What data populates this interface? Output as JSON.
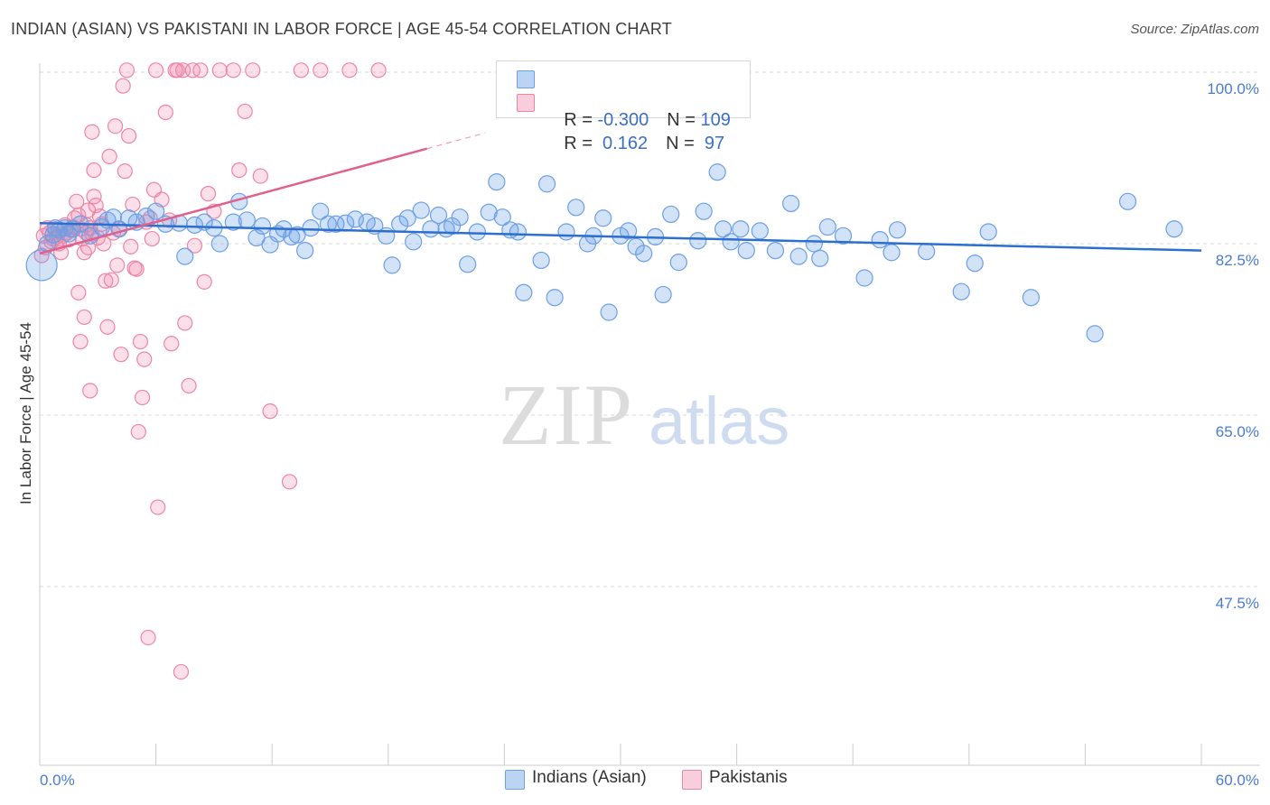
{
  "header": {
    "title": "INDIAN (ASIAN) VS PAKISTANI IN LABOR FORCE | AGE 45-54 CORRELATION CHART",
    "source": "Source: ZipAtlas.com"
  },
  "watermark": {
    "zip": "ZIP",
    "atlas": "atlas"
  },
  "colors": {
    "blue": "#6b9fe6",
    "blue_fill": "rgba(107,159,230,0.30)",
    "blue_line": "#2d6fcf",
    "pink": "#ee84a8",
    "pink_fill": "rgba(238,132,168,0.25)",
    "pink_line": "#e0608e",
    "tick_text": "#4a7cc9"
  },
  "legend": {
    "rows": [
      {
        "r_label": "R = ",
        "r_value": "-0.300",
        "n_label": "N = ",
        "n_value": "109"
      },
      {
        "r_label": "R = ",
        "r_value": " 0.162",
        "n_label": "N = ",
        "n_value": " 97"
      }
    ]
  },
  "bottom_legend": {
    "blue": "Indians (Asian)",
    "pink": "Pakistanis"
  },
  "chart_data": {
    "type": "scatter",
    "title": "INDIAN (ASIAN) VS PAKISTANI IN LABOR FORCE | AGE 45-54 CORRELATION CHART",
    "xlabel": "",
    "ylabel": "In Labor Force | Age 45-54",
    "xlim": [
      0,
      60
    ],
    "ylim": [
      30,
      101
    ],
    "x_tick_labels": [
      "0.0%",
      "60.0%"
    ],
    "y_ticks": [
      100,
      82.5,
      65,
      47.5
    ],
    "y_tick_labels": [
      "100.0%",
      "82.5%",
      "65.0%",
      "47.5%"
    ],
    "grid": "horizontal dashed",
    "legend_position": "top-center",
    "series": [
      {
        "name": "Indians (Asian)",
        "color": "#6b9fe6",
        "R": -0.3,
        "N": 109,
        "trend": {
          "x": [
            0,
            60
          ],
          "y": [
            84.6,
            81.8
          ]
        },
        "points": [
          [
            0.1,
            80.3
          ],
          [
            0.4,
            82.5
          ],
          [
            0.7,
            83.4
          ],
          [
            0.8,
            84.1
          ],
          [
            1.0,
            83.9
          ],
          [
            1.3,
            84.1
          ],
          [
            1.5,
            83.5
          ],
          [
            1.7,
            84.0
          ],
          [
            2.1,
            84.5
          ],
          [
            2.6,
            83.3
          ],
          [
            3.2,
            84.2
          ],
          [
            3.5,
            84.9
          ],
          [
            3.8,
            85.2
          ],
          [
            4.1,
            84.0
          ],
          [
            4.6,
            85.1
          ],
          [
            5.0,
            84.7
          ],
          [
            5.5,
            85.3
          ],
          [
            6.0,
            85.8
          ],
          [
            6.5,
            84.5
          ],
          [
            7.2,
            84.6
          ],
          [
            7.5,
            81.2
          ],
          [
            8.0,
            84.4
          ],
          [
            8.5,
            84.7
          ],
          [
            9.0,
            84.1
          ],
          [
            9.3,
            82.5
          ],
          [
            10.0,
            84.7
          ],
          [
            10.3,
            86.8
          ],
          [
            10.7,
            84.9
          ],
          [
            11.2,
            83.1
          ],
          [
            11.5,
            84.3
          ],
          [
            11.9,
            82.4
          ],
          [
            12.3,
            83.5
          ],
          [
            12.6,
            84.0
          ],
          [
            13.0,
            83.2
          ],
          [
            13.3,
            83.4
          ],
          [
            13.7,
            81.8
          ],
          [
            14.0,
            84.1
          ],
          [
            14.5,
            85.8
          ],
          [
            14.9,
            84.5
          ],
          [
            15.3,
            84.5
          ],
          [
            15.8,
            84.6
          ],
          [
            16.3,
            85.0
          ],
          [
            16.9,
            84.7
          ],
          [
            17.3,
            84.3
          ],
          [
            17.9,
            83.3
          ],
          [
            18.2,
            80.3
          ],
          [
            18.6,
            84.5
          ],
          [
            19.0,
            85.1
          ],
          [
            19.3,
            82.7
          ],
          [
            19.7,
            85.9
          ],
          [
            20.2,
            84.0
          ],
          [
            20.6,
            85.4
          ],
          [
            21.0,
            84.0
          ],
          [
            21.3,
            84.3
          ],
          [
            21.7,
            85.2
          ],
          [
            22.1,
            80.4
          ],
          [
            22.6,
            83.7
          ],
          [
            23.2,
            85.7
          ],
          [
            23.6,
            88.8
          ],
          [
            23.9,
            85.2
          ],
          [
            24.3,
            83.9
          ],
          [
            24.7,
            83.7
          ],
          [
            25.0,
            77.5
          ],
          [
            25.9,
            80.8
          ],
          [
            26.2,
            88.6
          ],
          [
            26.6,
            77.0
          ],
          [
            27.2,
            83.7
          ],
          [
            27.7,
            86.2
          ],
          [
            28.3,
            82.5
          ],
          [
            28.6,
            83.3
          ],
          [
            29.1,
            85.1
          ],
          [
            29.4,
            75.5
          ],
          [
            30.0,
            83.3
          ],
          [
            30.4,
            83.8
          ],
          [
            30.8,
            82.2
          ],
          [
            31.2,
            81.5
          ],
          [
            31.8,
            83.2
          ],
          [
            32.2,
            77.3
          ],
          [
            32.6,
            85.5
          ],
          [
            33.0,
            80.6
          ],
          [
            34.0,
            82.8
          ],
          [
            34.3,
            85.8
          ],
          [
            35.0,
            89.8
          ],
          [
            35.3,
            84.0
          ],
          [
            35.7,
            82.7
          ],
          [
            36.2,
            84.0
          ],
          [
            36.5,
            81.8
          ],
          [
            37.2,
            83.8
          ],
          [
            38.0,
            81.8
          ],
          [
            38.8,
            86.6
          ],
          [
            39.2,
            81.2
          ],
          [
            40.0,
            82.5
          ],
          [
            40.3,
            81.0
          ],
          [
            40.7,
            84.2
          ],
          [
            41.5,
            83.3
          ],
          [
            42.6,
            79.0
          ],
          [
            43.4,
            82.9
          ],
          [
            44.0,
            81.6
          ],
          [
            44.3,
            83.9
          ],
          [
            45.8,
            81.7
          ],
          [
            47.6,
            77.6
          ],
          [
            48.3,
            80.5
          ],
          [
            49.0,
            83.7
          ],
          [
            51.2,
            77.0
          ],
          [
            54.5,
            73.3
          ],
          [
            56.2,
            86.8
          ],
          [
            58.6,
            84.0
          ]
        ]
      },
      {
        "name": "Pakistanis",
        "color": "#ee84a8",
        "R": 0.162,
        "N": 97,
        "trend": {
          "solid_x": [
            0,
            20
          ],
          "solid_y": [
            81.5,
            92.2
          ],
          "dashed_x": [
            20,
            23
          ],
          "dashed_y": [
            92.2,
            93.8
          ]
        },
        "points": [
          [
            0.1,
            81.3
          ],
          [
            0.2,
            83.3
          ],
          [
            0.3,
            82.1
          ],
          [
            0.4,
            84.1
          ],
          [
            0.5,
            83.6
          ],
          [
            0.6,
            82.7
          ],
          [
            0.7,
            83.0
          ],
          [
            0.8,
            84.0
          ],
          [
            0.9,
            83.2
          ],
          [
            1.0,
            82.5
          ],
          [
            1.1,
            81.6
          ],
          [
            1.2,
            83.3
          ],
          [
            1.3,
            84.4
          ],
          [
            1.4,
            83.6
          ],
          [
            1.5,
            82.9
          ],
          [
            1.6,
            83.9
          ],
          [
            1.7,
            84.2
          ],
          [
            1.8,
            85.1
          ],
          [
            1.9,
            86.8
          ],
          [
            2.0,
            85.4
          ],
          [
            2.1,
            84.0
          ],
          [
            2.2,
            83.0
          ],
          [
            2.3,
            81.6
          ],
          [
            2.4,
            83.6
          ],
          [
            2.5,
            85.9
          ],
          [
            2.6,
            84.1
          ],
          [
            2.7,
            83.5
          ],
          [
            2.8,
            87.3
          ],
          [
            2.0,
            77.5
          ],
          [
            2.1,
            72.5
          ],
          [
            2.3,
            75.0
          ],
          [
            2.4,
            84.4
          ],
          [
            2.5,
            82.1
          ],
          [
            2.6,
            67.5
          ],
          [
            2.7,
            93.9
          ],
          [
            2.8,
            90.0
          ],
          [
            2.9,
            86.4
          ],
          [
            3.0,
            83.1
          ],
          [
            3.1,
            85.3
          ],
          [
            3.2,
            84.5
          ],
          [
            3.3,
            82.5
          ],
          [
            3.4,
            78.7
          ],
          [
            3.5,
            74.0
          ],
          [
            3.6,
            91.4
          ],
          [
            3.7,
            78.8
          ],
          [
            3.8,
            83.6
          ],
          [
            3.9,
            94.5
          ],
          [
            4.0,
            80.3
          ],
          [
            4.1,
            84.0
          ],
          [
            4.2,
            71.2
          ],
          [
            4.3,
            98.6
          ],
          [
            4.4,
            89.9
          ],
          [
            4.5,
            100.2
          ],
          [
            4.6,
            93.5
          ],
          [
            4.7,
            82.2
          ],
          [
            4.8,
            86.5
          ],
          [
            4.9,
            80.0
          ],
          [
            5.0,
            79.9
          ],
          [
            5.1,
            63.3
          ],
          [
            5.2,
            72.5
          ],
          [
            5.3,
            66.8
          ],
          [
            5.4,
            70.7
          ],
          [
            5.5,
            84.7
          ],
          [
            5.6,
            42.3
          ],
          [
            5.7,
            85.1
          ],
          [
            5.8,
            83.0
          ],
          [
            5.9,
            88.0
          ],
          [
            6.0,
            100.2
          ],
          [
            6.1,
            55.6
          ],
          [
            6.3,
            87.0
          ],
          [
            6.5,
            95.9
          ],
          [
            6.7,
            84.9
          ],
          [
            6.8,
            72.3
          ],
          [
            7.0,
            100.2
          ],
          [
            7.1,
            100.2
          ],
          [
            7.3,
            38.8
          ],
          [
            7.4,
            100.2
          ],
          [
            7.5,
            74.4
          ],
          [
            7.7,
            68.0
          ],
          [
            7.9,
            100.2
          ],
          [
            8.0,
            82.3
          ],
          [
            8.3,
            100.2
          ],
          [
            8.5,
            78.6
          ],
          [
            8.7,
            87.6
          ],
          [
            9.0,
            85.8
          ],
          [
            9.3,
            100.2
          ],
          [
            10.0,
            100.2
          ],
          [
            10.3,
            90.0
          ],
          [
            10.6,
            96.0
          ],
          [
            11.0,
            100.2
          ],
          [
            11.4,
            89.4
          ],
          [
            11.9,
            65.4
          ],
          [
            12.9,
            58.2
          ],
          [
            13.5,
            100.2
          ],
          [
            14.5,
            100.2
          ],
          [
            16.0,
            100.2
          ],
          [
            17.5,
            100.2
          ]
        ]
      }
    ]
  }
}
